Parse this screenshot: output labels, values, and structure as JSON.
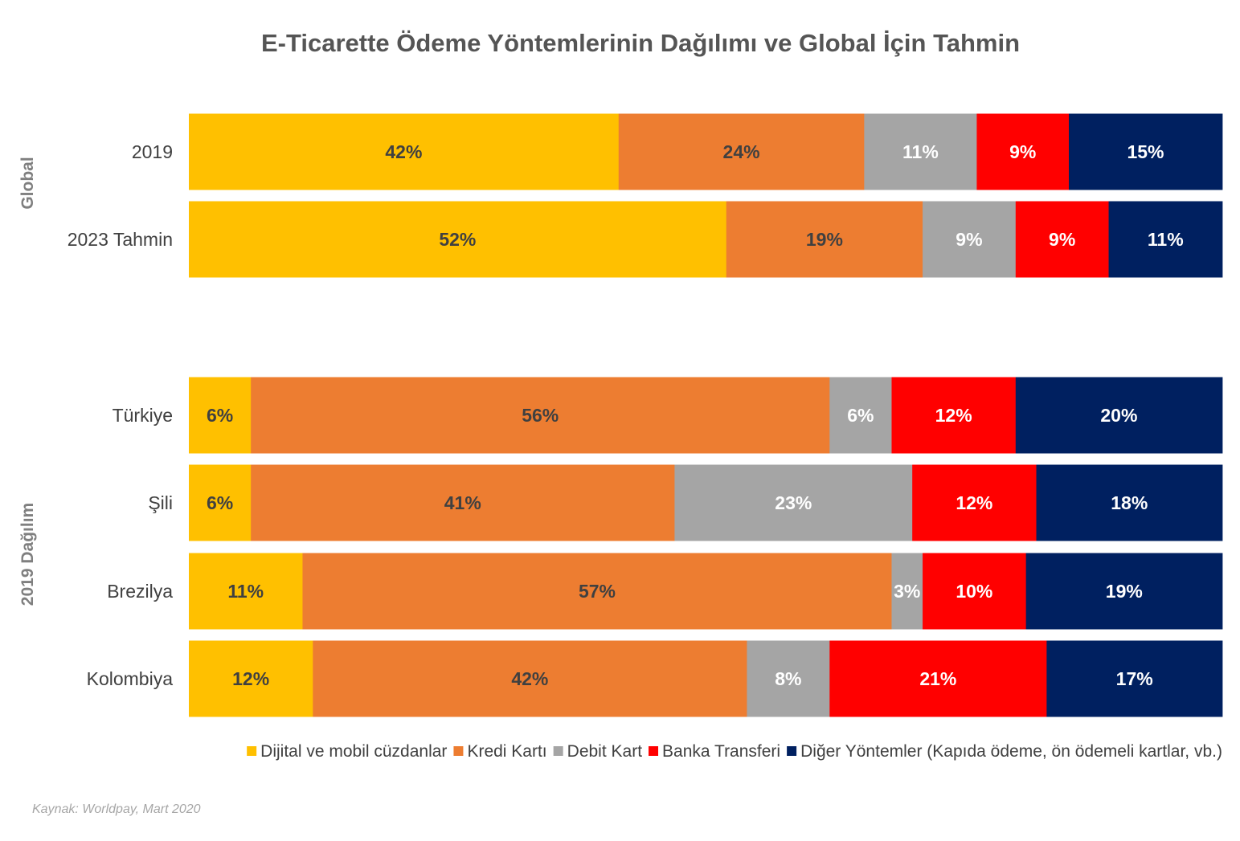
{
  "chart_data": {
    "type": "bar",
    "orientation": "horizontal",
    "stacked": true,
    "normalized": true,
    "title": "E-Ticarette Ödeme Yöntemlerinin Dağılımı ve Global İçin Tahmin",
    "groups": [
      {
        "name": "Global",
        "categories": [
          "2019",
          "2023 Tahmin"
        ]
      },
      {
        "name": "2019 Dağılım",
        "categories": [
          "Türkiye",
          "Şili",
          "Brezilya",
          "Kolombiya"
        ]
      }
    ],
    "categories": [
      "2019",
      "2023 Tahmin",
      "Türkiye",
      "Şili",
      "Brezilya",
      "Kolombiya"
    ],
    "series": [
      {
        "name": "Dijital ve mobil cüzdanlar",
        "color": "#FFC000",
        "label_color": "#404040",
        "values": [
          42,
          52,
          6,
          6,
          11,
          12
        ]
      },
      {
        "name": "Kredi Kartı",
        "color": "#ED7D31",
        "label_color": "#404040",
        "values": [
          24,
          19,
          56,
          41,
          57,
          42
        ]
      },
      {
        "name": "Debit Kart",
        "color": "#A5A5A5",
        "label_color": "#FFFFFF",
        "values": [
          11,
          9,
          6,
          23,
          3,
          8
        ]
      },
      {
        "name": "Banka Transferi",
        "color": "#FF0000",
        "label_color": "#FFFFFF",
        "values": [
          9,
          9,
          12,
          12,
          10,
          21
        ]
      },
      {
        "name": "Diğer Yöntemler (Kapıda ödeme, ön ödemeli kartlar, vb.)",
        "color": "#002060",
        "label_color": "#FFFFFF",
        "values": [
          15,
          11,
          20,
          18,
          19,
          17
        ]
      }
    ],
    "value_suffix": "%",
    "legend": "bottom",
    "grid": false,
    "source": "Kaynak: Worldpay, Mart 2020"
  }
}
